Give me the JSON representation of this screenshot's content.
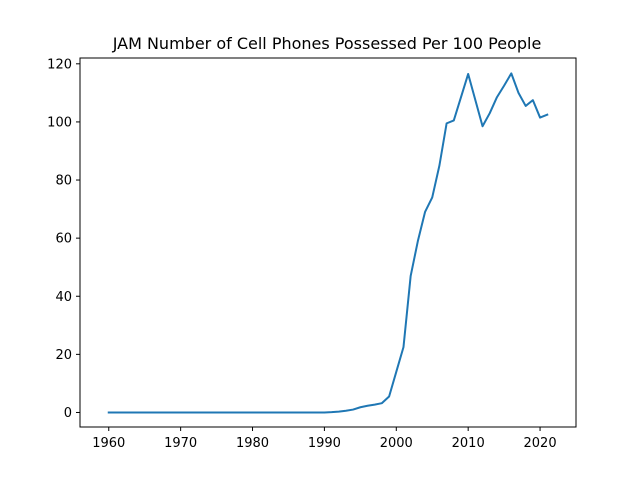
{
  "chart_data": {
    "type": "line",
    "title": "JAM Number of Cell Phones Possessed Per 100 People",
    "xlabel": "",
    "ylabel": "",
    "xlim": [
      1956,
      2025
    ],
    "ylim": [
      -5,
      122
    ],
    "x_ticks": [
      1960,
      1970,
      1980,
      1990,
      2000,
      2010,
      2020
    ],
    "y_ticks": [
      0,
      20,
      40,
      60,
      80,
      100,
      120
    ],
    "grid": false,
    "legend": "none",
    "series_color": "#1f77b4",
    "series": [
      {
        "x": [
          1960,
          1961,
          1962,
          1963,
          1964,
          1965,
          1966,
          1967,
          1968,
          1969,
          1970,
          1971,
          1972,
          1973,
          1974,
          1975,
          1976,
          1977,
          1978,
          1979,
          1980,
          1981,
          1982,
          1983,
          1984,
          1985,
          1986,
          1987,
          1988,
          1989,
          1990,
          1991,
          1992,
          1993,
          1994,
          1995,
          1996,
          1997,
          1998,
          1999,
          2000,
          2001,
          2002,
          2003,
          2004,
          2005,
          2006,
          2007,
          2008,
          2009,
          2010,
          2011,
          2012,
          2013,
          2014,
          2015,
          2016,
          2017,
          2018,
          2019,
          2020,
          2021
        ],
        "values": [
          0,
          0,
          0,
          0,
          0,
          0,
          0,
          0,
          0,
          0,
          0,
          0,
          0,
          0,
          0,
          0,
          0,
          0,
          0,
          0,
          0,
          0,
          0,
          0,
          0,
          0,
          0,
          0,
          0,
          0,
          0,
          0.1,
          0.3,
          0.6,
          1.0,
          1.8,
          2.3,
          2.7,
          3.2,
          5.5,
          14.0,
          22.5,
          47.0,
          59.0,
          69.0,
          74.0,
          85.0,
          99.5,
          100.5,
          108.5,
          116.5,
          107.5,
          98.5,
          103.0,
          108.5,
          112.5,
          116.7,
          110.0,
          105.5,
          107.5,
          101.5,
          102.5
        ]
      }
    ]
  }
}
